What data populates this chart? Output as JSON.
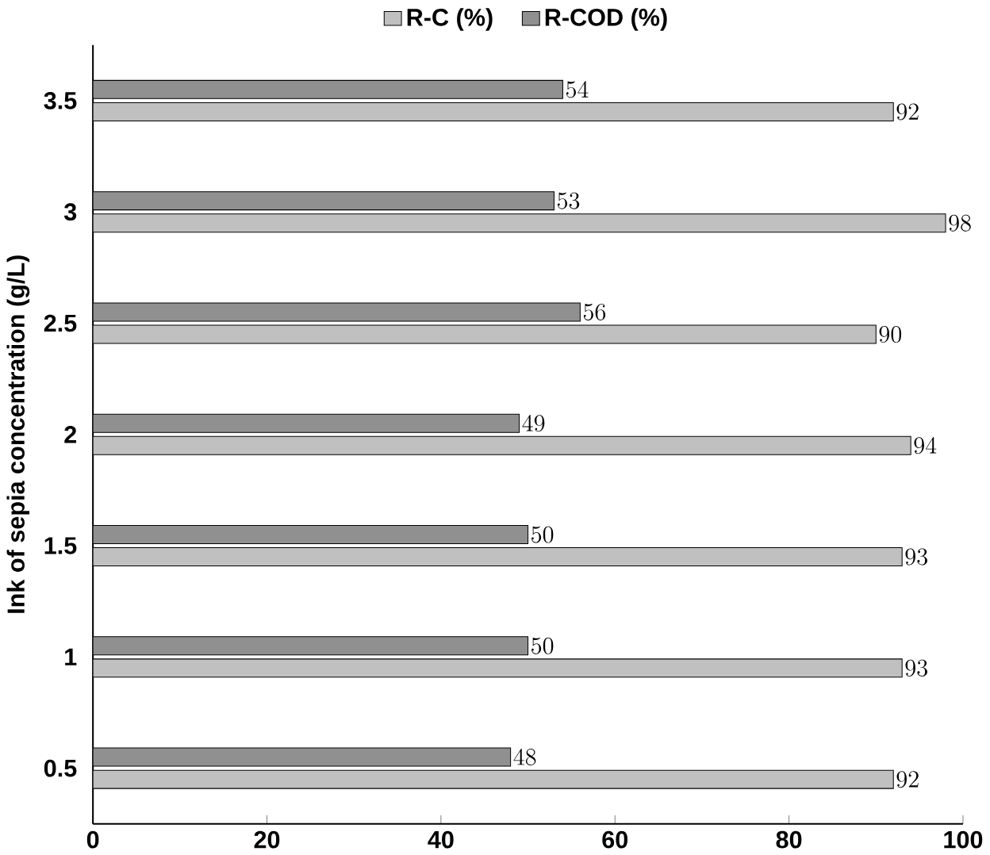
{
  "chart_data": {
    "type": "bar",
    "orientation": "horizontal",
    "ylabel": "Ink of sepia concentration (g/L)",
    "categories": [
      "3.5",
      "3",
      "2.5",
      "2",
      "1.5",
      "1",
      "0.5"
    ],
    "series": [
      {
        "name": "R-C (%)",
        "color": "#c0c0c0",
        "values": [
          92,
          98,
          90,
          94,
          93,
          93,
          92
        ]
      },
      {
        "name": "R-COD  (%)",
        "color": "#909090",
        "values": [
          54,
          53,
          56,
          49,
          50,
          50,
          48
        ]
      }
    ],
    "xlim": [
      0,
      100
    ],
    "xticks": [
      0,
      20,
      40,
      60,
      80,
      100
    ],
    "data_labels": true,
    "legend": "top",
    "grid": false
  }
}
